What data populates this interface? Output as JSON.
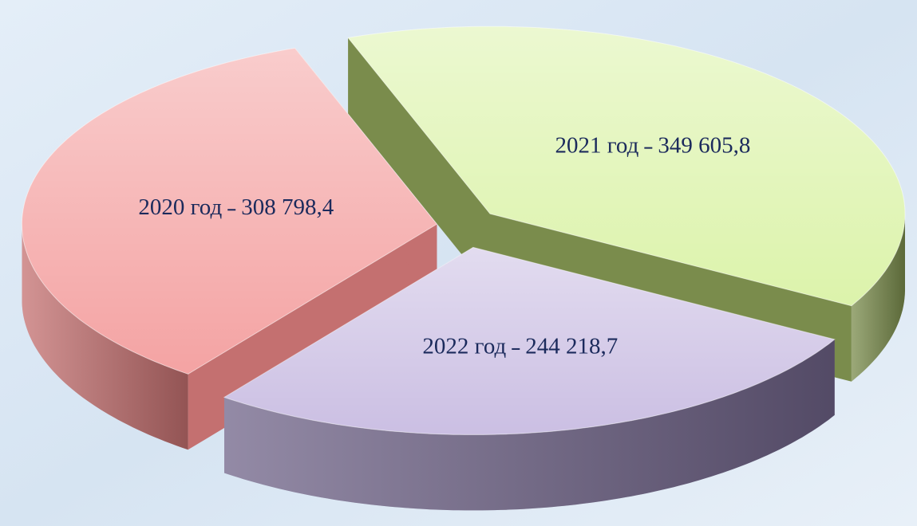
{
  "chart_data": {
    "type": "pie3d",
    "categories": [
      "2020 год",
      "2021 год",
      "2022 год"
    ],
    "values": [
      308798.4,
      349605.8,
      244218.7
    ],
    "value_labels": [
      "308 798,4",
      "349 605,8",
      "244 218,7"
    ],
    "colors": [
      "#f4a3a3",
      "#dcf3ab",
      "#cbbfe3"
    ],
    "side_colors": [
      "#c47070",
      "#7a8c4c",
      "#6f6388"
    ]
  }
}
